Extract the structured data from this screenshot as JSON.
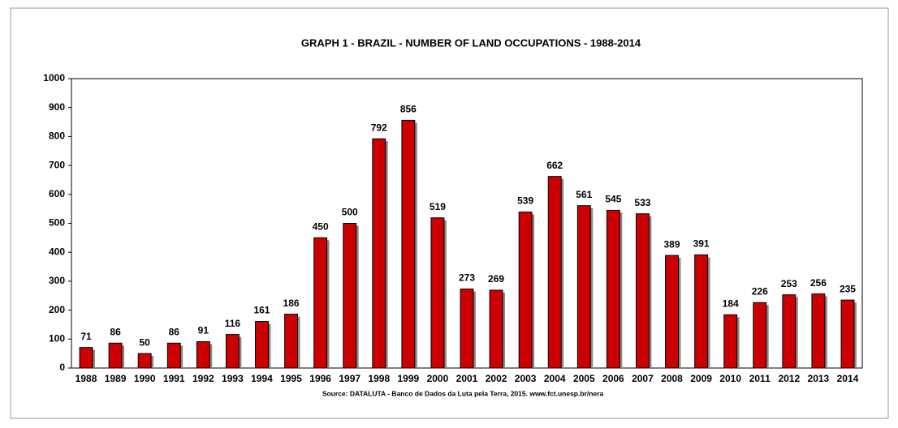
{
  "chart_data": {
    "type": "bar",
    "title": "GRAPH 1 - BRAZIL - NUMBER OF LAND OCCUPATIONS - 1988-2014",
    "source": "Source:  DATALUTA - Banco de Dados da Luta pela Terra,  2015.  www.fct.unesp.br/nera",
    "categories": [
      "1988",
      "1989",
      "1990",
      "1991",
      "1992",
      "1993",
      "1994",
      "1995",
      "1996",
      "1997",
      "1998",
      "1999",
      "2000",
      "2001",
      "2002",
      "2003",
      "2004",
      "2005",
      "2006",
      "2007",
      "2008",
      "2009",
      "2010",
      "2011",
      "2012",
      "2013",
      "2014"
    ],
    "values": [
      71,
      86,
      50,
      86,
      91,
      116,
      161,
      186,
      450,
      500,
      792,
      856,
      519,
      273,
      269,
      539,
      662,
      561,
      545,
      533,
      389,
      391,
      184,
      226,
      253,
      256,
      235
    ],
    "color": "#cc0000",
    "ylim": [
      0,
      1000
    ],
    "yticks": [
      0,
      100,
      200,
      300,
      400,
      500,
      600,
      700,
      800,
      900,
      1000
    ],
    "grid": false
  }
}
